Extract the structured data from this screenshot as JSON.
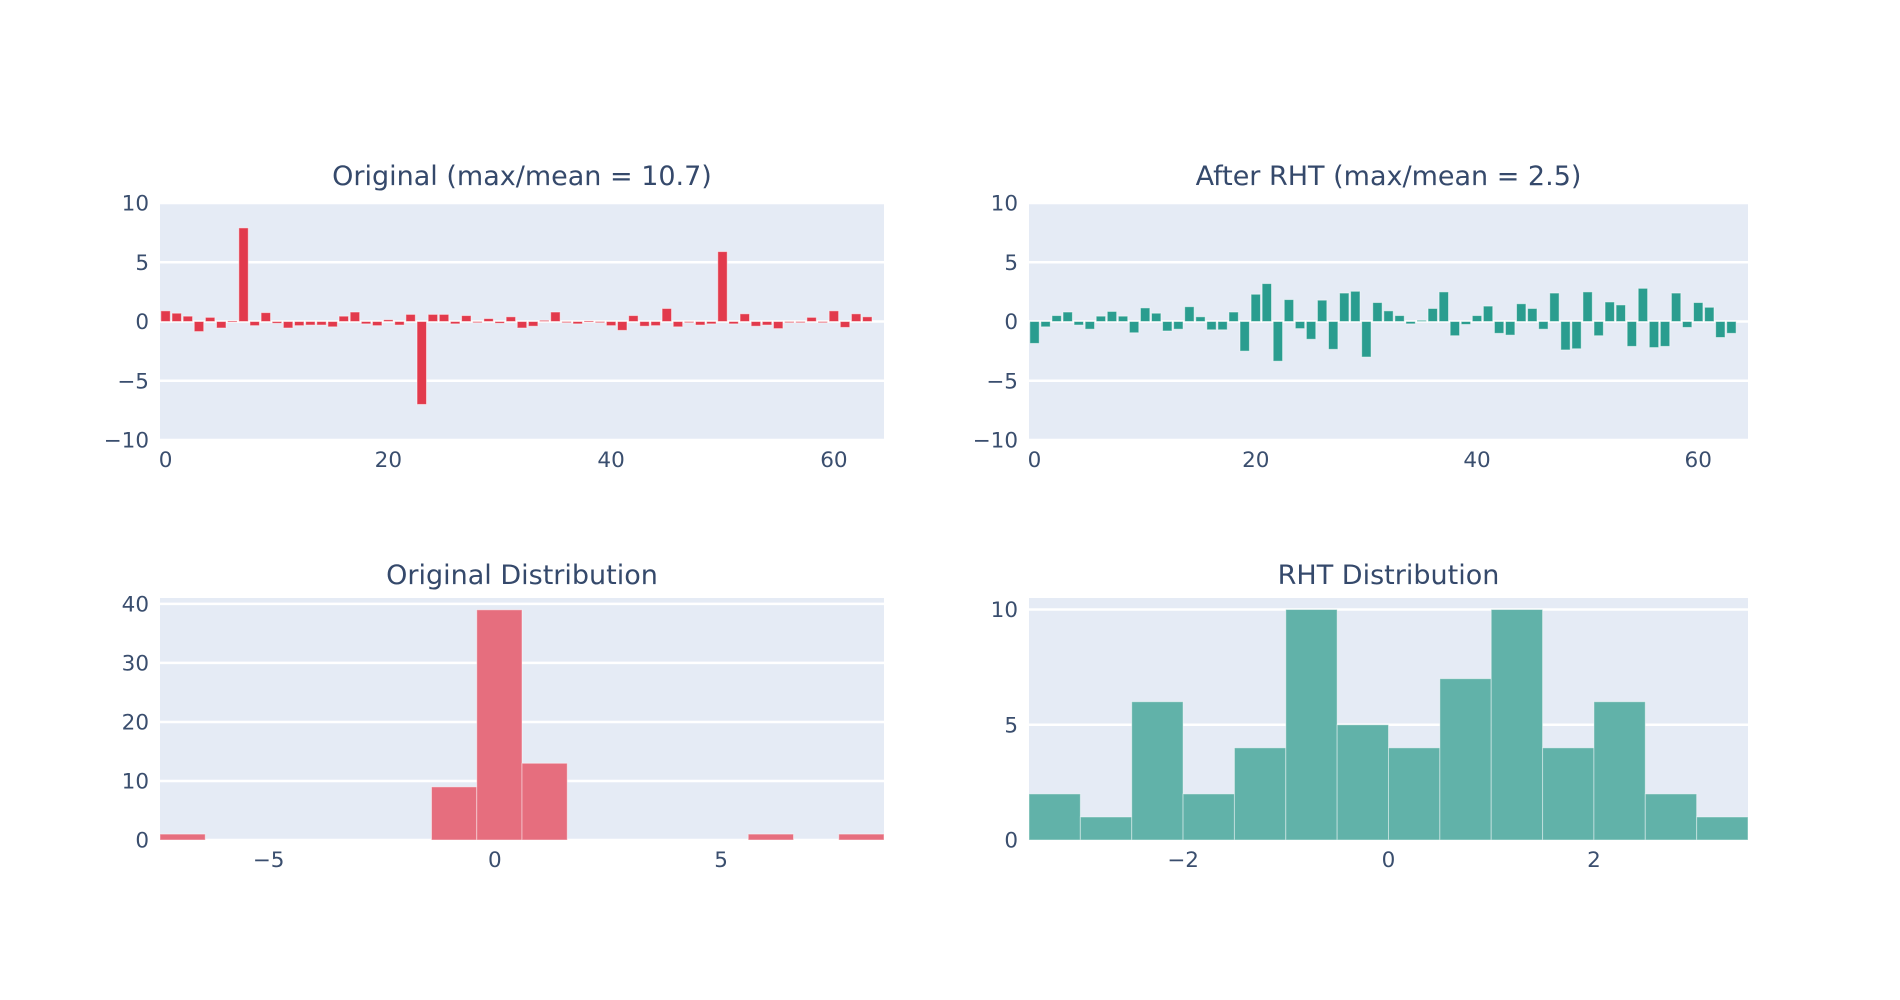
{
  "style": {
    "page_background": "#ffffff",
    "plot_background": "#e5ebf5",
    "gridline_color": "#ffffff",
    "text_color": "#35496b",
    "tick_color": "#3a4e6e",
    "original_bar_color": "#e23a4c",
    "rht_bar_color": "#2a9d8f",
    "original_hist_color": "#e66e7e",
    "rht_hist_color": "#61b2a9"
  },
  "chart_data": [
    {
      "id": "original-signal",
      "type": "bar",
      "title": "Original (max/mean = 10.7)",
      "bar_color": "#e23a4c",
      "xlim": [
        -0.5,
        64.5
      ],
      "ylim": [
        -10,
        10
      ],
      "xticks": [
        0,
        20,
        40,
        60
      ],
      "yticks": [
        -10,
        -5,
        0,
        5,
        10
      ],
      "grid": "y-only",
      "legend": "none",
      "xlabel": "",
      "ylabel": "",
      "values": [
        0.9,
        0.7,
        0.45,
        -0.85,
        0.35,
        -0.55,
        0.05,
        7.9,
        -0.35,
        0.75,
        -0.15,
        -0.55,
        -0.35,
        -0.3,
        -0.3,
        -0.45,
        0.45,
        0.8,
        -0.2,
        -0.35,
        0.15,
        -0.3,
        0.6,
        -7.0,
        0.6,
        0.6,
        -0.2,
        0.5,
        -0.05,
        0.25,
        -0.15,
        0.4,
        -0.55,
        -0.4,
        0.1,
        0.8,
        -0.1,
        -0.2,
        0.05,
        -0.05,
        -0.35,
        -0.75,
        0.5,
        -0.4,
        -0.35,
        1.1,
        -0.45,
        -0.1,
        -0.3,
        -0.2,
        5.9,
        -0.2,
        0.65,
        -0.4,
        -0.3,
        -0.6,
        0.0,
        -0.05,
        0.35,
        -0.05,
        0.9,
        -0.5,
        0.65,
        0.4
      ]
    },
    {
      "id": "rht-signal",
      "type": "bar",
      "title": "After RHT (max/mean = 2.5)",
      "bar_color": "#2a9d8f",
      "xlim": [
        -0.5,
        64.5
      ],
      "ylim": [
        -10,
        10
      ],
      "xticks": [
        0,
        20,
        40,
        60
      ],
      "yticks": [
        -10,
        -5,
        0,
        5,
        10
      ],
      "grid": "y-only",
      "legend": "none",
      "xlabel": "",
      "ylabel": "",
      "values": [
        -1.85,
        -0.45,
        0.5,
        0.8,
        -0.3,
        -0.65,
        0.45,
        0.85,
        0.45,
        -0.95,
        1.15,
        0.7,
        -0.8,
        -0.65,
        1.25,
        0.4,
        -0.7,
        -0.7,
        0.8,
        -2.5,
        2.3,
        3.2,
        -3.35,
        1.85,
        -0.6,
        -1.5,
        1.8,
        -2.35,
        2.4,
        2.55,
        -3.0,
        1.6,
        0.9,
        0.5,
        -0.2,
        0.1,
        1.1,
        2.5,
        -1.2,
        -0.25,
        0.5,
        1.3,
        -1.0,
        -1.15,
        1.5,
        1.1,
        -0.65,
        2.4,
        -2.4,
        -2.3,
        2.5,
        -1.2,
        1.65,
        1.4,
        -2.1,
        2.8,
        -2.2,
        -2.1,
        2.4,
        -0.5,
        1.6,
        1.2,
        -1.35,
        -1.0
      ]
    },
    {
      "id": "original-distribution",
      "type": "histogram",
      "title": "Original Distribution",
      "bar_color": "#e66e7e",
      "xlim": [
        -7.4,
        8.6
      ],
      "ylim": [
        0,
        41
      ],
      "xticks": [
        -5,
        0,
        5
      ],
      "yticks": [
        0,
        10,
        20,
        30,
        40
      ],
      "grid": "y-only",
      "legend": "none",
      "xlabel": "",
      "ylabel": "",
      "bins": [
        {
          "x0": -7.4,
          "x1": -6.4,
          "count": 1
        },
        {
          "x0": -1.4,
          "x1": -0.4,
          "count": 9
        },
        {
          "x0": -0.4,
          "x1": 0.6,
          "count": 39
        },
        {
          "x0": 0.6,
          "x1": 1.6,
          "count": 13
        },
        {
          "x0": 5.6,
          "x1": 6.6,
          "count": 1
        },
        {
          "x0": 7.6,
          "x1": 8.6,
          "count": 1
        }
      ]
    },
    {
      "id": "rht-distribution",
      "type": "histogram",
      "title": "RHT Distribution",
      "bar_color": "#61b2a9",
      "xlim": [
        -3.5,
        3.5
      ],
      "ylim": [
        0,
        10.5
      ],
      "xticks": [
        -2,
        0,
        2
      ],
      "yticks": [
        0,
        5,
        10
      ],
      "grid": "y-only",
      "legend": "none",
      "xlabel": "",
      "ylabel": "",
      "bins": [
        {
          "x0": -3.5,
          "x1": -3.0,
          "count": 2
        },
        {
          "x0": -3.0,
          "x1": -2.5,
          "count": 1
        },
        {
          "x0": -2.5,
          "x1": -2.0,
          "count": 6
        },
        {
          "x0": -2.0,
          "x1": -1.5,
          "count": 2
        },
        {
          "x0": -1.5,
          "x1": -1.0,
          "count": 4
        },
        {
          "x0": -1.0,
          "x1": -0.5,
          "count": 10
        },
        {
          "x0": -0.5,
          "x1": 0.0,
          "count": 5
        },
        {
          "x0": 0.0,
          "x1": 0.5,
          "count": 4
        },
        {
          "x0": 0.5,
          "x1": 1.0,
          "count": 7
        },
        {
          "x0": 1.0,
          "x1": 1.5,
          "count": 10
        },
        {
          "x0": 1.5,
          "x1": 2.0,
          "count": 4
        },
        {
          "x0": 2.0,
          "x1": 2.5,
          "count": 6
        },
        {
          "x0": 2.5,
          "x1": 3.0,
          "count": 2
        },
        {
          "x0": 3.0,
          "x1": 3.5,
          "count": 1
        }
      ]
    }
  ]
}
